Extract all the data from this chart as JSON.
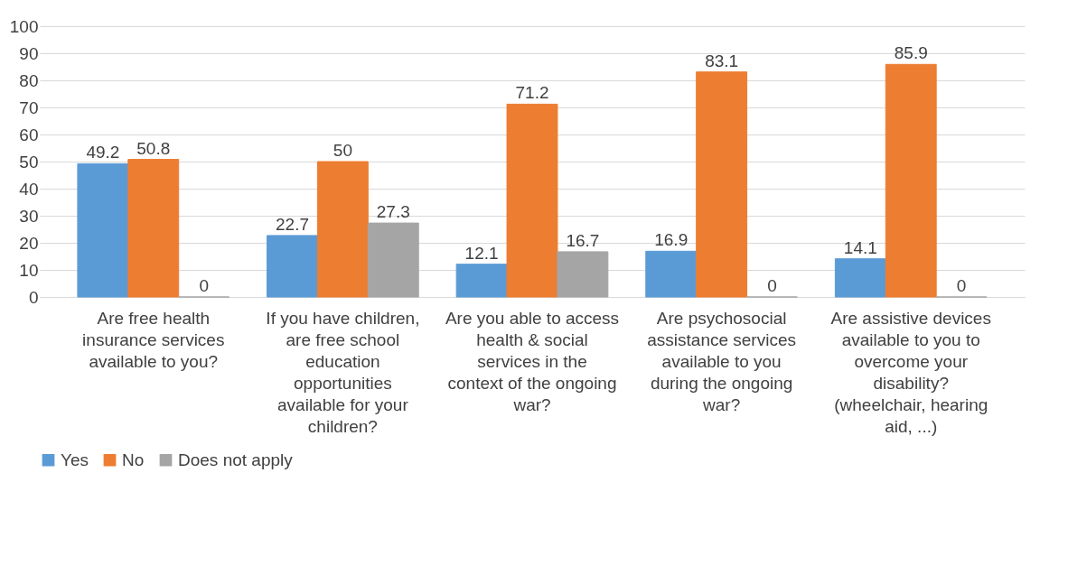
{
  "chart_data": {
    "type": "bar",
    "categories": [
      "Are free health insurance services available to you?",
      "If you have children, are free school education opportunities available for your children?",
      "Are you able to access health & social services in the context of the ongoing war?",
      "Are psychosocial assistance services available to you during the ongoing war?",
      "Are assistive devices available to you to overcome your disability? (wheelchair, hearing aid, ...)"
    ],
    "series": [
      {
        "name": "Yes",
        "color": "#5b9bd5",
        "values": [
          49.2,
          22.7,
          12.1,
          16.9,
          14.1
        ]
      },
      {
        "name": "No",
        "color": "#ed7d31",
        "values": [
          50.8,
          50,
          71.2,
          83.1,
          85.9
        ]
      },
      {
        "name": "Does not apply",
        "color": "#a5a5a5",
        "values": [
          0,
          27.3,
          16.7,
          0,
          0
        ]
      }
    ],
    "ylim": [
      0,
      100
    ],
    "yticks": [
      0,
      10,
      20,
      30,
      40,
      50,
      60,
      70,
      80,
      90,
      100
    ],
    "grid": "y",
    "legend": "bottom",
    "data_labels": true
  }
}
